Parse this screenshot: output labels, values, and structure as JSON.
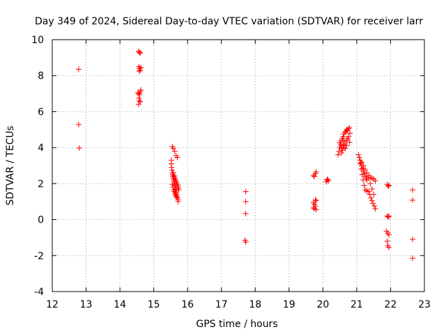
{
  "chart_data": {
    "type": "scatter",
    "title": "Day 349 of 2024, Sidereal Day-to-day VTEC variation (SDTVAR) for receiver larr",
    "xlabel": "GPS time / hours",
    "ylabel": "SDTVAR / TECUs",
    "xlim": [
      12,
      23
    ],
    "ylim": [
      -4,
      10
    ],
    "xticks": [
      "12",
      "13",
      "14",
      "15",
      "16",
      "17",
      "18",
      "19",
      "20",
      "21",
      "22",
      "23"
    ],
    "yticks": [
      "-4",
      "-2",
      "0",
      "2",
      "4",
      "6",
      "8",
      "10"
    ],
    "grid": true,
    "marker": "+",
    "color": "#ff0000",
    "series": [
      {
        "name": "SDTVAR",
        "points": [
          [
            12.78,
            8.35
          ],
          [
            12.78,
            5.28
          ],
          [
            12.8,
            3.97
          ],
          [
            14.55,
            9.35
          ],
          [
            14.58,
            9.3
          ],
          [
            14.6,
            9.25
          ],
          [
            14.56,
            8.5
          ],
          [
            14.58,
            8.4
          ],
          [
            14.6,
            8.3
          ],
          [
            14.62,
            8.45
          ],
          [
            14.57,
            8.25
          ],
          [
            14.53,
            7.05
          ],
          [
            14.56,
            7.0
          ],
          [
            14.58,
            6.95
          ],
          [
            14.6,
            7.1
          ],
          [
            14.62,
            7.2
          ],
          [
            14.56,
            6.75
          ],
          [
            14.58,
            6.6
          ],
          [
            14.6,
            6.55
          ],
          [
            14.55,
            6.4
          ],
          [
            15.55,
            4.05
          ],
          [
            15.58,
            3.95
          ],
          [
            15.62,
            3.8
          ],
          [
            15.66,
            3.55
          ],
          [
            15.7,
            3.45
          ],
          [
            15.52,
            3.3
          ],
          [
            15.52,
            3.1
          ],
          [
            15.53,
            2.9
          ],
          [
            15.54,
            2.75
          ],
          [
            15.55,
            2.6
          ],
          [
            15.56,
            2.5
          ],
          [
            15.57,
            2.4
          ],
          [
            15.58,
            2.3
          ],
          [
            15.59,
            2.2
          ],
          [
            15.6,
            2.1
          ],
          [
            15.61,
            2.0
          ],
          [
            15.62,
            1.9
          ],
          [
            15.63,
            1.8
          ],
          [
            15.64,
            1.7
          ],
          [
            15.65,
            1.6
          ],
          [
            15.66,
            1.5
          ],
          [
            15.67,
            1.4
          ],
          [
            15.68,
            1.3
          ],
          [
            15.7,
            1.2
          ],
          [
            15.72,
            1.1
          ],
          [
            15.72,
            1.0
          ],
          [
            15.58,
            2.6
          ],
          [
            15.6,
            2.45
          ],
          [
            15.62,
            2.35
          ],
          [
            15.64,
            2.25
          ],
          [
            15.66,
            2.15
          ],
          [
            15.68,
            2.05
          ],
          [
            15.7,
            1.95
          ],
          [
            15.72,
            1.85
          ],
          [
            15.73,
            1.75
          ],
          [
            15.74,
            1.65
          ],
          [
            15.55,
            1.95
          ],
          [
            15.57,
            1.8
          ],
          [
            15.59,
            1.65
          ],
          [
            15.61,
            1.55
          ],
          [
            15.63,
            1.45
          ],
          [
            15.65,
            1.35
          ],
          [
            15.67,
            1.25
          ],
          [
            17.72,
            1.55
          ],
          [
            17.72,
            1.0
          ],
          [
            17.72,
            0.33
          ],
          [
            17.7,
            -1.15
          ],
          [
            17.72,
            -1.25
          ],
          [
            19.72,
            2.45
          ],
          [
            19.75,
            2.4
          ],
          [
            19.78,
            2.55
          ],
          [
            19.8,
            2.65
          ],
          [
            19.72,
            0.95
          ],
          [
            19.75,
            0.85
          ],
          [
            19.78,
            1.1
          ],
          [
            19.8,
            1.05
          ],
          [
            19.72,
            0.65
          ],
          [
            19.75,
            0.6
          ],
          [
            19.78,
            0.75
          ],
          [
            19.8,
            0.55
          ],
          [
            20.1,
            2.1
          ],
          [
            20.12,
            2.2
          ],
          [
            20.14,
            2.25
          ],
          [
            20.16,
            2.15
          ],
          [
            20.45,
            3.6
          ],
          [
            20.48,
            3.8
          ],
          [
            20.5,
            4.0
          ],
          [
            20.52,
            4.2
          ],
          [
            20.55,
            4.4
          ],
          [
            20.58,
            4.5
          ],
          [
            20.6,
            4.6
          ],
          [
            20.62,
            4.75
          ],
          [
            20.65,
            4.85
          ],
          [
            20.68,
            4.9
          ],
          [
            20.7,
            5.0
          ],
          [
            20.72,
            4.95
          ],
          [
            20.75,
            5.05
          ],
          [
            20.78,
            5.1
          ],
          [
            20.8,
            4.8
          ],
          [
            20.5,
            4.3
          ],
          [
            20.53,
            4.1
          ],
          [
            20.56,
            3.95
          ],
          [
            20.6,
            4.15
          ],
          [
            20.63,
            4.35
          ],
          [
            20.66,
            4.2
          ],
          [
            20.7,
            4.4
          ],
          [
            20.73,
            4.5
          ],
          [
            20.76,
            4.6
          ],
          [
            20.79,
            4.3
          ],
          [
            20.55,
            3.7
          ],
          [
            20.58,
            3.85
          ],
          [
            20.62,
            4.0
          ],
          [
            20.66,
            3.95
          ],
          [
            20.7,
            4.1
          ],
          [
            21.05,
            3.6
          ],
          [
            21.08,
            3.45
          ],
          [
            21.1,
            3.3
          ],
          [
            21.12,
            3.15
          ],
          [
            21.15,
            3.0
          ],
          [
            21.18,
            2.85
          ],
          [
            21.2,
            2.7
          ],
          [
            21.22,
            2.55
          ],
          [
            21.25,
            2.4
          ],
          [
            21.28,
            2.3
          ],
          [
            21.3,
            2.2
          ],
          [
            21.35,
            2.3
          ],
          [
            21.4,
            2.35
          ],
          [
            21.45,
            2.3
          ],
          [
            21.5,
            2.25
          ],
          [
            21.55,
            2.15
          ],
          [
            21.1,
            3.1
          ],
          [
            21.13,
            2.8
          ],
          [
            21.16,
            2.5
          ],
          [
            21.19,
            2.2
          ],
          [
            21.22,
            1.9
          ],
          [
            21.25,
            1.65
          ],
          [
            21.3,
            1.6
          ],
          [
            21.35,
            1.55
          ],
          [
            21.38,
            1.4
          ],
          [
            21.42,
            1.2
          ],
          [
            21.45,
            1.05
          ],
          [
            21.48,
            0.9
          ],
          [
            21.52,
            0.75
          ],
          [
            21.55,
            0.6
          ],
          [
            21.15,
            3.2
          ],
          [
            21.2,
            3.0
          ],
          [
            21.25,
            2.8
          ],
          [
            21.3,
            2.6
          ],
          [
            21.35,
            2.45
          ],
          [
            21.4,
            2.0
          ],
          [
            21.45,
            1.7
          ],
          [
            21.5,
            1.4
          ],
          [
            21.9,
            1.95
          ],
          [
            21.93,
            1.85
          ],
          [
            21.95,
            1.9
          ],
          [
            21.9,
            0.2
          ],
          [
            21.93,
            0.15
          ],
          [
            21.95,
            0.18
          ],
          [
            21.88,
            -0.65
          ],
          [
            21.92,
            -0.75
          ],
          [
            21.95,
            -0.85
          ],
          [
            21.9,
            -1.2
          ],
          [
            21.92,
            -1.45
          ],
          [
            21.95,
            -1.55
          ],
          [
            22.65,
            1.65
          ],
          [
            22.65,
            1.08
          ],
          [
            22.65,
            -1.1
          ],
          [
            22.65,
            -2.15
          ]
        ]
      }
    ]
  }
}
